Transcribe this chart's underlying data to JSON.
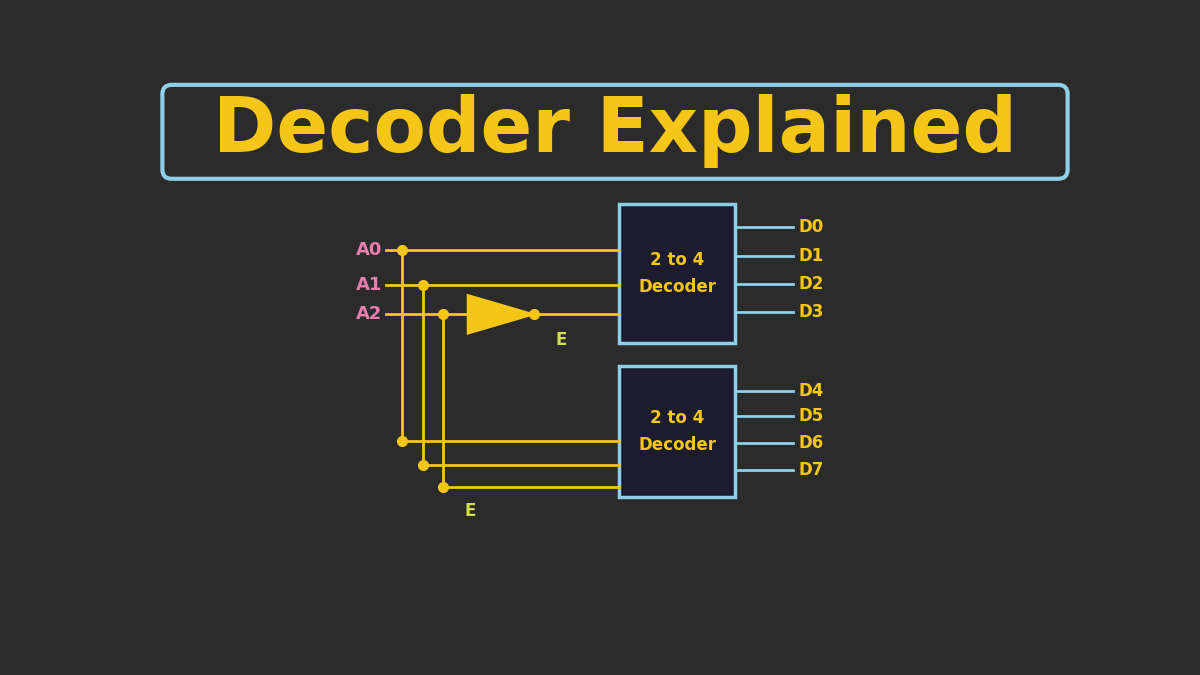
{
  "bg_color": "#2b2b2b",
  "title": "Decoder Explained",
  "title_color": "#f5c518",
  "title_fontsize": 55,
  "title_box_edge": "#8ecfea",
  "wire_color": "#f5c518",
  "cyan_color": "#8ecfea",
  "box_bg": "#1c1c2e",
  "label_A_color": "#e87dae",
  "label_D_color": "#f5c518",
  "label_E_color": "#d4e04a",
  "label_box_color": "#f5c518",
  "inputs": [
    "A0",
    "A1",
    "A2"
  ],
  "outputs_top": [
    "D0",
    "D1",
    "D2",
    "D3"
  ],
  "outputs_bot": [
    "D4",
    "D5",
    "D6",
    "D7"
  ],
  "decoder_label": "2 to 4\nDecoder"
}
